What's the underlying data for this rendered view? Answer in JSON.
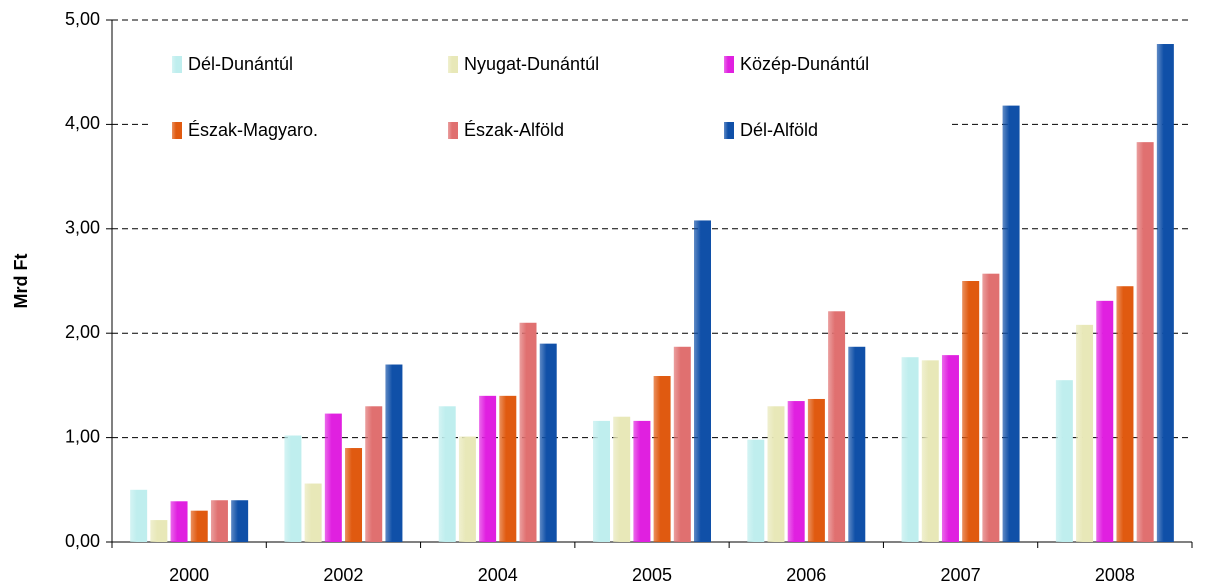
{
  "chart_data": {
    "type": "bar",
    "y_label": "Mrd Ft",
    "categories": [
      "2000",
      "2002",
      "2004",
      "2005",
      "2006",
      "2007",
      "2008"
    ],
    "series": [
      {
        "name": "Dél-Dunántúl",
        "color": "#bfeeee",
        "values": [
          0.5,
          1.02,
          1.3,
          1.16,
          0.98,
          1.77,
          1.55
        ]
      },
      {
        "name": "Nyugat-Dunántúl",
        "color": "#e8e8b8",
        "values": [
          0.21,
          0.56,
          1.01,
          1.2,
          1.3,
          1.74,
          2.08
        ]
      },
      {
        "name": "Közép-Dunántúl",
        "color": "#e020e0",
        "values": [
          0.39,
          1.23,
          1.4,
          1.16,
          1.35,
          1.79,
          2.31
        ]
      },
      {
        "name": "Észak-Magyaro.",
        "color": "#e05a10",
        "values": [
          0.3,
          0.9,
          1.4,
          1.59,
          1.37,
          2.5,
          2.45
        ]
      },
      {
        "name": "Észak-Alföld",
        "color": "#e07070",
        "values": [
          0.4,
          1.3,
          2.1,
          1.87,
          2.21,
          2.57,
          3.83
        ]
      },
      {
        "name": "Dél-Alföld",
        "color": "#1050a8",
        "values": [
          0.4,
          1.7,
          1.9,
          3.08,
          1.87,
          4.18,
          4.77
        ]
      }
    ],
    "ylim": [
      0,
      5
    ],
    "yticks": [
      {
        "value": 0,
        "label": "0,00"
      },
      {
        "value": 1,
        "label": "1,00"
      },
      {
        "value": 2,
        "label": "2,00"
      },
      {
        "value": 3,
        "label": "3,00"
      },
      {
        "value": 4,
        "label": "4,00"
      },
      {
        "value": 5,
        "label": "5,00"
      }
    ],
    "grid": true,
    "legend": "top"
  }
}
